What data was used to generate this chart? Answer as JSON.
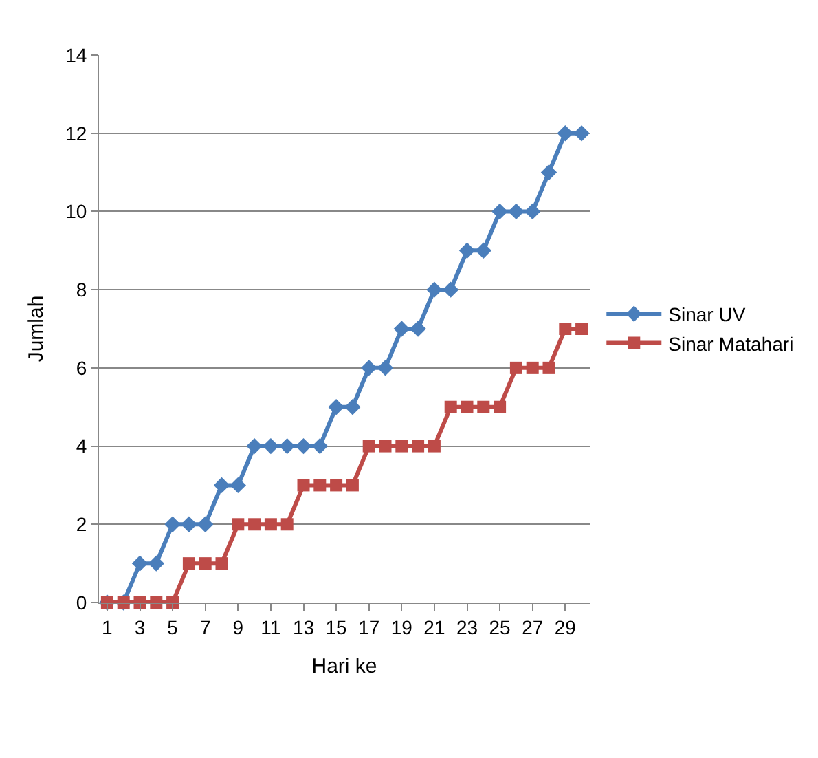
{
  "chart_data": {
    "type": "line",
    "xlabel": "Hari ke",
    "ylabel": "Jumlah",
    "x": [
      1,
      2,
      3,
      4,
      5,
      6,
      7,
      8,
      9,
      10,
      11,
      12,
      13,
      14,
      15,
      16,
      17,
      18,
      19,
      20,
      21,
      22,
      23,
      24,
      25,
      26,
      27,
      28,
      29,
      30
    ],
    "xlim": [
      0.5,
      30.5
    ],
    "xticks": [
      1,
      3,
      5,
      7,
      9,
      11,
      13,
      15,
      17,
      19,
      21,
      23,
      25,
      27,
      29
    ],
    "series": [
      {
        "name": "Sinar UV",
        "color": "#4a7ebb",
        "marker": "diamond",
        "values": [
          0,
          0,
          1,
          1,
          2,
          2,
          2,
          3,
          3,
          4,
          4,
          4,
          4,
          4,
          5,
          5,
          6,
          6,
          7,
          7,
          8,
          8,
          9,
          9,
          10,
          10,
          10,
          11,
          12,
          12
        ]
      },
      {
        "name": "Sinar Matahari",
        "color": "#be4b48",
        "marker": "square",
        "values": [
          0,
          0,
          0,
          0,
          0,
          1,
          1,
          1,
          2,
          2,
          2,
          2,
          3,
          3,
          3,
          3,
          4,
          4,
          4,
          4,
          4,
          5,
          5,
          5,
          5,
          6,
          6,
          6,
          7,
          7
        ]
      }
    ],
    "ylim": [
      0,
      14
    ],
    "yticks": [
      0,
      2,
      4,
      6,
      8,
      10,
      12,
      14
    ],
    "grid": "y",
    "legend": "right",
    "line_style": "solid"
  }
}
